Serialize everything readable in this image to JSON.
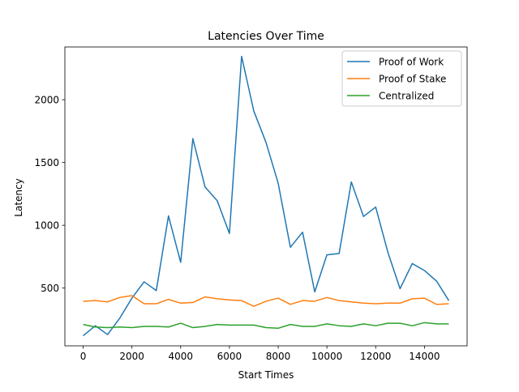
{
  "chart_data": {
    "type": "line",
    "title": "Latencies Over Time",
    "xlabel": "Start Times",
    "ylabel": "Latency",
    "xlim": [
      -750,
      15750
    ],
    "ylim": [
      40,
      2420
    ],
    "grid": false,
    "legend_position": "top-right",
    "x_ticks": [
      0,
      2000,
      4000,
      6000,
      8000,
      10000,
      12000,
      14000
    ],
    "y_ticks": [
      500,
      1000,
      1500,
      2000
    ],
    "x": [
      0,
      500,
      1000,
      1500,
      2000,
      2500,
      3000,
      3500,
      4000,
      4500,
      5000,
      5500,
      6000,
      6500,
      7000,
      7500,
      8000,
      8500,
      9000,
      9500,
      10000,
      10500,
      11000,
      11500,
      12000,
      12500,
      13000,
      13500,
      14000,
      14500,
      15000
    ],
    "series": [
      {
        "name": "Proof of Work",
        "color": "#1f77b4",
        "values": [
          120,
          200,
          130,
          260,
          420,
          550,
          480,
          1075,
          705,
          1690,
          1305,
          1195,
          935,
          2345,
          1910,
          1660,
          1335,
          825,
          945,
          470,
          765,
          775,
          1345,
          1070,
          1145,
          785,
          495,
          695,
          640,
          555,
          400
        ]
      },
      {
        "name": "Proof of Stake",
        "color": "#ff7f0e",
        "values": [
          395,
          400,
          390,
          425,
          440,
          375,
          375,
          410,
          380,
          385,
          430,
          415,
          405,
          400,
          355,
          395,
          420,
          370,
          400,
          395,
          425,
          400,
          390,
          380,
          375,
          380,
          380,
          415,
          420,
          370,
          375
        ]
      },
      {
        "name": "Centralized",
        "color": "#2ca02c",
        "values": [
          210,
          190,
          185,
          190,
          185,
          195,
          195,
          190,
          220,
          185,
          195,
          210,
          205,
          205,
          205,
          185,
          180,
          210,
          195,
          195,
          215,
          200,
          195,
          215,
          200,
          220,
          220,
          200,
          225,
          215,
          215
        ]
      }
    ]
  }
}
